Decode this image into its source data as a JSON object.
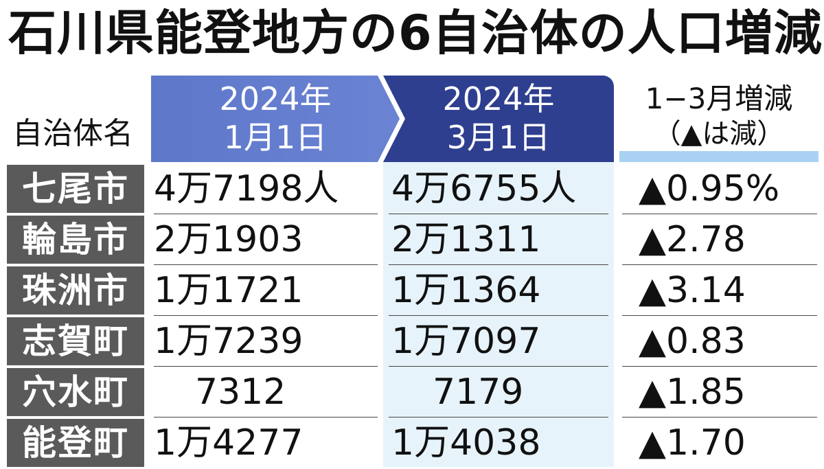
{
  "title": "石川県能登地方の6自治体の人口増減",
  "header": {
    "name_col": "自治体名",
    "col1_line1": "2024年",
    "col1_line2": "1月1日",
    "col2_line1": "2024年",
    "col2_line2": "3月1日",
    "col3_line1": "1−3月増減",
    "col3_line2": "（▲は減）"
  },
  "colors": {
    "header_col1": "#6b83d3",
    "header_col2": "#2f3f8f",
    "name_cell_bg": "#5a5a5a",
    "col2_bg": "#e6f3fb",
    "col3_accent": "#a9d1f2"
  },
  "rows": [
    {
      "name": "七尾市",
      "jan": "4万7198人",
      "mar": "4万6755人",
      "change": "▲0.95%"
    },
    {
      "name": "輪島市",
      "jan": "2万1903",
      "mar": "2万1311",
      "change": "▲2.78"
    },
    {
      "name": "珠洲市",
      "jan": "1万1721",
      "mar": "1万1364",
      "change": "▲3.14"
    },
    {
      "name": "志賀町",
      "jan": "1万7239",
      "mar": "1万7097",
      "change": "▲0.83"
    },
    {
      "name": "穴水町",
      "jan": "7312",
      "mar": "7179",
      "change": "▲1.85"
    },
    {
      "name": "能登町",
      "jan": "1万4277",
      "mar": "1万4038",
      "change": "▲1.70"
    }
  ]
}
